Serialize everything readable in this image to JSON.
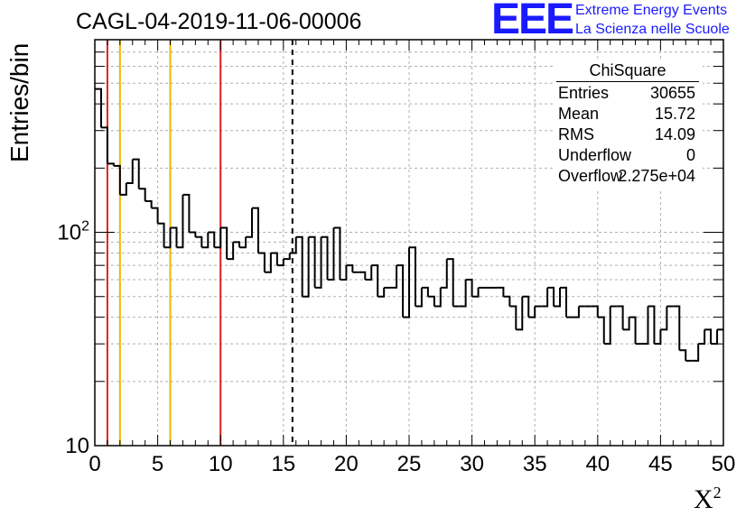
{
  "title": "CAGL-04-2019-11-06-00006",
  "brand": {
    "logo_text": "EEE",
    "line1": "Extreme Energy Events",
    "line2": "La Scienza nelle Scuole",
    "color": "#1a1aff"
  },
  "stats": {
    "title": "ChiSquare",
    "rows": [
      {
        "name": "Entries",
        "value": "30655"
      },
      {
        "name": "Mean",
        "value": "15.72"
      },
      {
        "name": "RMS",
        "value": "14.09"
      },
      {
        "name": "Underflow",
        "value": "0"
      },
      {
        "name": "Overflow",
        "value": "2.275e+04"
      }
    ]
  },
  "chart_data": {
    "type": "histogram",
    "title": "CAGL-04-2019-11-06-00006",
    "xlabel": "X",
    "xlabel_superscript": "2",
    "ylabel": "Entries/bin",
    "xlim": [
      0,
      50
    ],
    "ylim": [
      10,
      800
    ],
    "y_scale": "log",
    "grid": true,
    "bin_width": 0.5,
    "x_ticks": [
      "0",
      "5",
      "10",
      "15",
      "20",
      "25",
      "30",
      "35",
      "40",
      "45",
      "50"
    ],
    "y_tick_labels": [
      {
        "value": 10,
        "label": "10"
      },
      {
        "value": 100,
        "label": "10",
        "exponent": "2"
      }
    ],
    "values": [
      470,
      310,
      210,
      205,
      150,
      170,
      220,
      160,
      140,
      130,
      110,
      85,
      105,
      85,
      150,
      100,
      95,
      85,
      100,
      85,
      105,
      75,
      90,
      85,
      95,
      130,
      80,
      65,
      80,
      70,
      75,
      80,
      95,
      50,
      95,
      55,
      95,
      60,
      105,
      60,
      70,
      65,
      65,
      60,
      70,
      50,
      55,
      55,
      70,
      40,
      85,
      45,
      55,
      50,
      45,
      55,
      75,
      45,
      45,
      60,
      50,
      55,
      55,
      55,
      55,
      50,
      45,
      35,
      50,
      40,
      45,
      45,
      55,
      45,
      55,
      40,
      40,
      45,
      45,
      45,
      40,
      30,
      45,
      45,
      35,
      40,
      30,
      30,
      45,
      30,
      35,
      45,
      45,
      28,
      25,
      25,
      30,
      35,
      30,
      35
    ],
    "vertical_lines": [
      {
        "x": 1,
        "color": "#dd2222",
        "style": "solid"
      },
      {
        "x": 2,
        "color": "#f0b800",
        "style": "solid"
      },
      {
        "x": 6,
        "color": "#f0b800",
        "style": "solid"
      },
      {
        "x": 10,
        "color": "#dd2222",
        "style": "solid"
      },
      {
        "x": 15.72,
        "color": "#000000",
        "style": "dashed"
      }
    ],
    "stat_box_position": "top-right"
  }
}
